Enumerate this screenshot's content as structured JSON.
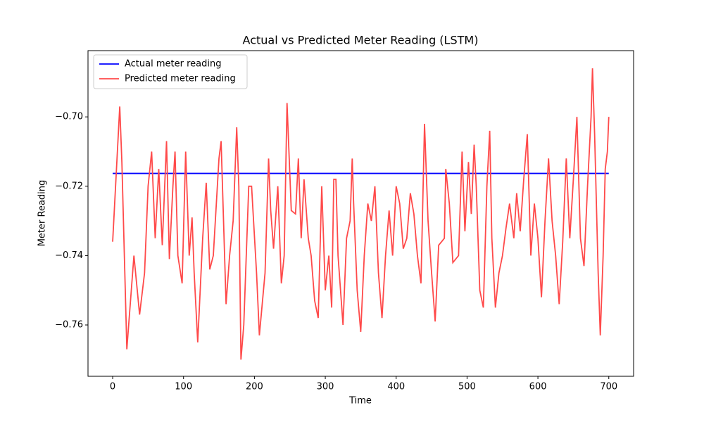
{
  "chart_data": {
    "type": "line",
    "title": "Actual vs Predicted Meter Reading (LSTM)",
    "x_label": "Time",
    "y_label": "Meter Reading",
    "xlim": [
      -34.8,
      735
    ],
    "ylim": [
      -0.7748,
      -0.6809
    ],
    "xticks": [
      0,
      100,
      200,
      300,
      400,
      500,
      600,
      700
    ],
    "yticks": [
      {
        "value": -0.76,
        "label": "−0.76"
      },
      {
        "value": -0.74,
        "label": "−0.74"
      },
      {
        "value": -0.72,
        "label": "−0.72"
      },
      {
        "value": -0.7,
        "label": "−0.70"
      }
    ],
    "legend": "upper left",
    "series": [
      {
        "name": "Actual meter reading",
        "color": "#0000ff",
        "x": [
          0,
          700
        ],
        "values": [
          -0.7163,
          -0.7163
        ]
      },
      {
        "name": "Predicted meter reading",
        "color": "#ff4a4a",
        "x": [
          0,
          10,
          13,
          20,
          30,
          38,
          45,
          50,
          55,
          60,
          65,
          70,
          76,
          80,
          85,
          88,
          92,
          98,
          103,
          108,
          112,
          115,
          120,
          127,
          132,
          137,
          142,
          150,
          153,
          160,
          165,
          170,
          175,
          178,
          181,
          185,
          192,
          196,
          203,
          207,
          215,
          220,
          223,
          227,
          233,
          238,
          242,
          246,
          252,
          258,
          262,
          266,
          270,
          276,
          280,
          285,
          290,
          295,
          300,
          305,
          309,
          312,
          315,
          318,
          325,
          330,
          335,
          338,
          340,
          345,
          350,
          355,
          360,
          365,
          370,
          375,
          380,
          385,
          390,
          395,
          400,
          405,
          410,
          415,
          420,
          425,
          430,
          435,
          440,
          445,
          450,
          455,
          460,
          468,
          470,
          475,
          480,
          488,
          493,
          497,
          502,
          506,
          510,
          513,
          518,
          523,
          528,
          532,
          535,
          540,
          545,
          550,
          555,
          560,
          566,
          570,
          575,
          580,
          585,
          590,
          595,
          600,
          605,
          610,
          615,
          620,
          625,
          630,
          635,
          640,
          645,
          650,
          655,
          660,
          665,
          670,
          675,
          677,
          680,
          685,
          688,
          692,
          695,
          698,
          700
        ],
        "values": [
          -0.736,
          -0.697,
          -0.713,
          -0.767,
          -0.74,
          -0.757,
          -0.745,
          -0.72,
          -0.71,
          -0.735,
          -0.715,
          -0.737,
          -0.707,
          -0.741,
          -0.72,
          -0.71,
          -0.74,
          -0.748,
          -0.71,
          -0.74,
          -0.729,
          -0.745,
          -0.765,
          -0.735,
          -0.719,
          -0.744,
          -0.74,
          -0.712,
          -0.707,
          -0.754,
          -0.74,
          -0.73,
          -0.703,
          -0.72,
          -0.77,
          -0.76,
          -0.72,
          -0.72,
          -0.745,
          -0.763,
          -0.745,
          -0.712,
          -0.727,
          -0.738,
          -0.72,
          -0.748,
          -0.74,
          -0.696,
          -0.727,
          -0.728,
          -0.712,
          -0.735,
          -0.718,
          -0.735,
          -0.74,
          -0.753,
          -0.758,
          -0.72,
          -0.75,
          -0.74,
          -0.755,
          -0.718,
          -0.718,
          -0.74,
          -0.76,
          -0.735,
          -0.73,
          -0.712,
          -0.725,
          -0.75,
          -0.762,
          -0.74,
          -0.725,
          -0.73,
          -0.72,
          -0.745,
          -0.758,
          -0.74,
          -0.727,
          -0.74,
          -0.72,
          -0.725,
          -0.738,
          -0.735,
          -0.722,
          -0.728,
          -0.74,
          -0.748,
          -0.702,
          -0.73,
          -0.745,
          -0.759,
          -0.737,
          -0.735,
          -0.715,
          -0.725,
          -0.742,
          -0.74,
          -0.71,
          -0.733,
          -0.713,
          -0.728,
          -0.708,
          -0.72,
          -0.75,
          -0.755,
          -0.72,
          -0.704,
          -0.735,
          -0.755,
          -0.745,
          -0.74,
          -0.732,
          -0.725,
          -0.735,
          -0.722,
          -0.733,
          -0.718,
          -0.705,
          -0.74,
          -0.725,
          -0.735,
          -0.752,
          -0.73,
          -0.712,
          -0.73,
          -0.74,
          -0.754,
          -0.736,
          -0.712,
          -0.735,
          -0.718,
          -0.7,
          -0.735,
          -0.743,
          -0.72,
          -0.7,
          -0.686,
          -0.705,
          -0.745,
          -0.763,
          -0.74,
          -0.715,
          -0.71,
          -0.7
        ]
      }
    ]
  }
}
